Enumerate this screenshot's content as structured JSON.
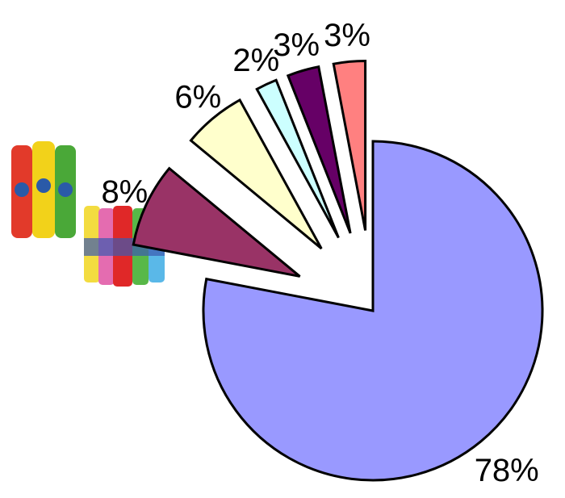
{
  "chart_data": {
    "type": "pie",
    "values": [
      78,
      8,
      6,
      2,
      3,
      3
    ],
    "value_labels": [
      "78%",
      "8%",
      "6%",
      "2%",
      "3%",
      "3%"
    ],
    "colors": [
      "#9999ff",
      "#993366",
      "#ffffcc",
      "#ccffff",
      "#660066",
      "#ff8080"
    ]
  }
}
